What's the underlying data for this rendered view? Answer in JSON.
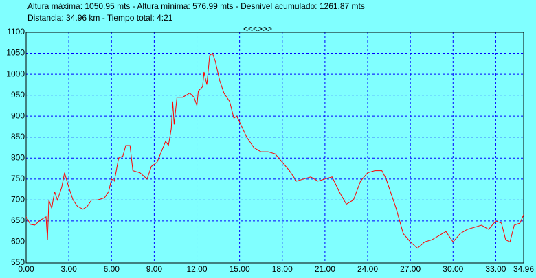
{
  "header": {
    "line1": "Altura máxima: 1050.95 mts - Altura mínima: 576.99 mts - Desnivel acumulado: 1261.87 mts",
    "line2": "Distancia: 34.96 km - Tiempo total: 4:21"
  },
  "nav_label": "<<<>>>",
  "chart_data": {
    "type": "line",
    "x": [
      0,
      0.3,
      0.6,
      1.0,
      1.4,
      1.5,
      1.6,
      1.8,
      2.0,
      2.2,
      2.5,
      2.7,
      3.0,
      3.3,
      3.6,
      4.0,
      4.3,
      4.6,
      5.0,
      5.5,
      5.8,
      6.0,
      6.2,
      6.5,
      6.8,
      7.0,
      7.3,
      7.5,
      8.0,
      8.5,
      8.8,
      9.2,
      9.5,
      9.8,
      10.0,
      10.2,
      10.3,
      10.4,
      10.6,
      11.0,
      11.5,
      11.8,
      12.0,
      12.1,
      12.4,
      12.5,
      12.7,
      12.9,
      13.1,
      13.3,
      13.6,
      13.9,
      14.3,
      14.6,
      14.8,
      15.5,
      16.0,
      16.5,
      17.0,
      17.5,
      18.0,
      18.5,
      19.0,
      19.5,
      20.0,
      20.5,
      21.0,
      21.5,
      22.0,
      22.5,
      23.0,
      23.5,
      24.0,
      24.5,
      25.0,
      25.3,
      26.0,
      26.5,
      27.0,
      27.5,
      28.0,
      28.5,
      29.0,
      29.5,
      30.0,
      30.5,
      31.0,
      31.5,
      32.0,
      32.5,
      33.0,
      33.4,
      33.7,
      34.0,
      34.3,
      34.7,
      34.96
    ],
    "values": [
      660,
      642,
      640,
      652,
      660,
      605,
      700,
      680,
      720,
      700,
      730,
      765,
      730,
      700,
      685,
      678,
      685,
      700,
      700,
      705,
      720,
      750,
      745,
      800,
      805,
      830,
      830,
      770,
      765,
      750,
      780,
      790,
      815,
      840,
      830,
      870,
      935,
      880,
      945,
      945,
      955,
      945,
      925,
      960,
      970,
      1005,
      975,
      1045,
      1050,
      1030,
      985,
      955,
      935,
      895,
      900,
      850,
      825,
      815,
      815,
      810,
      790,
      770,
      745,
      750,
      755,
      745,
      750,
      755,
      720,
      690,
      700,
      745,
      765,
      770,
      770,
      750,
      680,
      620,
      600,
      585,
      600,
      605,
      615,
      625,
      600,
      620,
      630,
      635,
      640,
      630,
      650,
      645,
      605,
      600,
      640,
      645,
      665
    ],
    "color": "#ff0000",
    "xlim": [
      0,
      34.96
    ],
    "ylim": [
      550,
      1100
    ],
    "xticks": [
      {
        "value": 0,
        "label": "0.00"
      },
      {
        "value": 3,
        "label": "3.00"
      },
      {
        "value": 6,
        "label": "6.00"
      },
      {
        "value": 9,
        "label": "9.00"
      },
      {
        "value": 12,
        "label": "12.00"
      },
      {
        "value": 15,
        "label": "15.00"
      },
      {
        "value": 18,
        "label": "18.00"
      },
      {
        "value": 21,
        "label": "21.00"
      },
      {
        "value": 24,
        "label": "24.00"
      },
      {
        "value": 27,
        "label": "27.00"
      },
      {
        "value": 30,
        "label": "30.00"
      },
      {
        "value": 33,
        "label": "33.00"
      },
      {
        "value": 34.96,
        "label": "34.96"
      }
    ],
    "yticks": [
      550,
      600,
      650,
      700,
      750,
      800,
      850,
      900,
      950,
      1000,
      1050,
      1100
    ],
    "grid": true
  }
}
